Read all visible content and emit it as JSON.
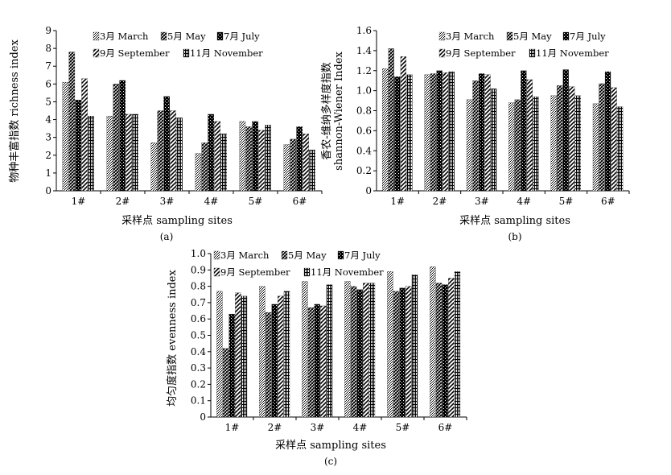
{
  "chart_data": [
    {
      "type": "bar",
      "panel_label": "(a)",
      "categories": [
        "1#",
        "2#",
        "3#",
        "4#",
        "5#",
        "6#"
      ],
      "series": [
        {
          "name": "3月 March",
          "values": [
            6.1,
            4.2,
            2.7,
            2.1,
            3.9,
            2.6
          ]
        },
        {
          "name": "5月 May",
          "values": [
            7.8,
            6.0,
            4.5,
            2.7,
            3.6,
            2.9
          ]
        },
        {
          "name": "7月 July",
          "values": [
            5.1,
            6.2,
            5.3,
            4.3,
            3.9,
            3.6
          ]
        },
        {
          "name": "9月 September",
          "values": [
            6.3,
            4.3,
            4.5,
            3.9,
            3.4,
            3.2
          ]
        },
        {
          "name": "11月 November",
          "values": [
            4.2,
            4.3,
            4.1,
            3.2,
            3.7,
            2.3
          ]
        }
      ],
      "xlabel": "采样点 sampling sites",
      "ylabel": "物种丰富指数 richness index",
      "ylim": [
        0,
        9
      ],
      "yticks": [
        "0",
        "1",
        "2",
        "3",
        "4",
        "5",
        "6",
        "7",
        "8",
        "9"
      ],
      "legend": "top"
    },
    {
      "type": "bar",
      "panel_label": "(b)",
      "categories": [
        "1#",
        "2#",
        "3#",
        "4#",
        "5#",
        "6#"
      ],
      "series": [
        {
          "name": "3月 March",
          "values": [
            1.22,
            1.16,
            0.91,
            0.88,
            0.95,
            0.87
          ]
        },
        {
          "name": "5月 May",
          "values": [
            1.42,
            1.17,
            1.1,
            0.91,
            1.05,
            1.07
          ]
        },
        {
          "name": "7月 July",
          "values": [
            1.14,
            1.2,
            1.17,
            1.2,
            1.21,
            1.19
          ]
        },
        {
          "name": "9月 September",
          "values": [
            1.34,
            1.18,
            1.16,
            1.11,
            1.04,
            1.03
          ]
        },
        {
          "name": "11月 November",
          "values": [
            1.16,
            1.19,
            1.02,
            0.94,
            0.95,
            0.84
          ]
        }
      ],
      "xlabel": "采样点 sampling sites",
      "ylabel": "香农-维纳多样度指数",
      "ylabel2": "shannon-Wiener Index",
      "ylim": [
        0,
        1.6
      ],
      "yticks": [
        "0",
        "0.2",
        "0.4",
        "0.6",
        "0.8",
        "1.0",
        "1.2",
        "1.4",
        "1.6"
      ],
      "legend": "top"
    },
    {
      "type": "bar",
      "panel_label": "(c)",
      "categories": [
        "1#",
        "2#",
        "3#",
        "4#",
        "5#",
        "6#"
      ],
      "series": [
        {
          "name": "3月 March",
          "values": [
            0.77,
            0.8,
            0.83,
            0.83,
            0.89,
            0.92
          ]
        },
        {
          "name": "5月 May",
          "values": [
            0.42,
            0.64,
            0.67,
            0.8,
            0.77,
            0.82
          ]
        },
        {
          "name": "7月 July",
          "values": [
            0.63,
            0.69,
            0.69,
            0.78,
            0.79,
            0.81
          ]
        },
        {
          "name": "9月 September",
          "values": [
            0.76,
            0.74,
            0.68,
            0.82,
            0.8,
            0.85
          ]
        },
        {
          "name": "11月 November",
          "values": [
            0.74,
            0.77,
            0.81,
            0.82,
            0.87,
            0.89
          ]
        }
      ],
      "xlabel": "采样点 sampling sites",
      "ylabel": "均匀度指数 evenness index",
      "ylim": [
        0,
        1.0
      ],
      "yticks": [
        "0",
        "0.1",
        "0.2",
        "0.3",
        "0.4",
        "0.5",
        "0.6",
        "0.7",
        "0.8",
        "0.9",
        "1.0"
      ],
      "legend": "top"
    }
  ]
}
